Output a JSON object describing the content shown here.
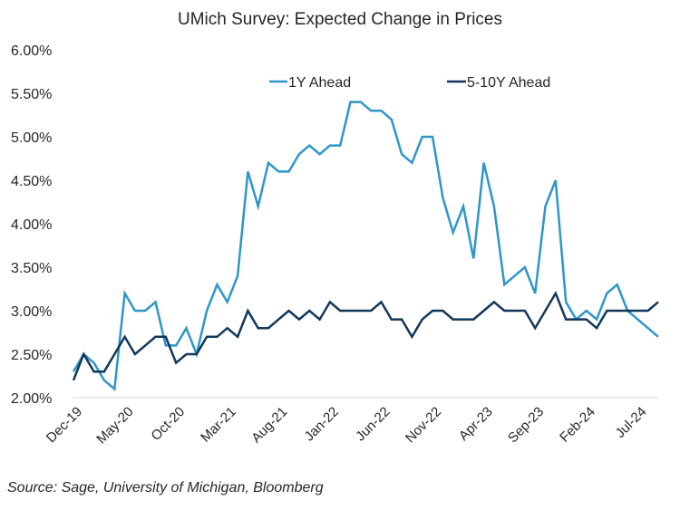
{
  "chart_data": {
    "type": "line",
    "title": "UMich Survey: Expected Change in Prices",
    "xlabel": "",
    "ylabel": "",
    "ylim": [
      0.02,
      0.06
    ],
    "ytick_step": 0.005,
    "y_format": "percent_2dp",
    "grid": false,
    "baseline_only": true,
    "legend_position": "top-center",
    "x": [
      "Dec-19",
      "Jan-20",
      "Feb-20",
      "Mar-20",
      "Apr-20",
      "May-20",
      "Jun-20",
      "Jul-20",
      "Aug-20",
      "Sep-20",
      "Oct-20",
      "Nov-20",
      "Dec-20",
      "Jan-21",
      "Feb-21",
      "Mar-21",
      "Apr-21",
      "May-21",
      "Jun-21",
      "Jul-21",
      "Aug-21",
      "Sep-21",
      "Oct-21",
      "Nov-21",
      "Dec-21",
      "Jan-22",
      "Feb-22",
      "Mar-22",
      "Apr-22",
      "May-22",
      "Jun-22",
      "Jul-22",
      "Aug-22",
      "Sep-22",
      "Oct-22",
      "Nov-22",
      "Dec-22",
      "Jan-23",
      "Feb-23",
      "Mar-23",
      "Apr-23",
      "May-23",
      "Jun-23",
      "Jul-23",
      "Aug-23",
      "Sep-23",
      "Oct-23",
      "Nov-23",
      "Dec-23",
      "Jan-24",
      "Feb-24",
      "Mar-24",
      "Apr-24",
      "May-24",
      "Jun-24",
      "Jul-24",
      "Aug-24",
      "Sep-24"
    ],
    "x_tick_labels": [
      "Dec-19",
      "May-20",
      "Oct-20",
      "Mar-21",
      "Aug-21",
      "Jan-22",
      "Jun-22",
      "Nov-22",
      "Apr-23",
      "Sep-23",
      "Feb-24",
      "Jul-24"
    ],
    "x_tick_every": 5,
    "series": [
      {
        "name": "1Y Ahead",
        "color": "#2E96C8",
        "values": [
          0.023,
          0.025,
          0.024,
          0.022,
          0.021,
          0.032,
          0.03,
          0.03,
          0.031,
          0.026,
          0.026,
          0.028,
          0.025,
          0.03,
          0.033,
          0.031,
          0.034,
          0.046,
          0.042,
          0.047,
          0.046,
          0.046,
          0.048,
          0.049,
          0.048,
          0.049,
          0.049,
          0.054,
          0.054,
          0.053,
          0.053,
          0.052,
          0.048,
          0.047,
          0.05,
          0.05,
          0.043,
          0.039,
          0.042,
          0.036,
          0.047,
          0.042,
          0.033,
          0.034,
          0.035,
          0.032,
          0.042,
          0.045,
          0.031,
          0.029,
          0.03,
          0.029,
          0.032,
          0.033,
          0.03,
          0.029,
          0.028,
          0.027
        ]
      },
      {
        "name": "5-10Y Ahead",
        "color": "#12375A",
        "values": [
          0.022,
          0.025,
          0.023,
          0.023,
          0.025,
          0.027,
          0.025,
          0.026,
          0.027,
          0.027,
          0.024,
          0.025,
          0.025,
          0.027,
          0.027,
          0.028,
          0.027,
          0.03,
          0.028,
          0.028,
          0.029,
          0.03,
          0.029,
          0.03,
          0.029,
          0.031,
          0.03,
          0.03,
          0.03,
          0.03,
          0.031,
          0.029,
          0.029,
          0.027,
          0.029,
          0.03,
          0.03,
          0.029,
          0.029,
          0.029,
          0.03,
          0.031,
          0.03,
          0.03,
          0.03,
          0.028,
          0.03,
          0.032,
          0.029,
          0.029,
          0.029,
          0.028,
          0.03,
          0.03,
          0.03,
          0.03,
          0.03,
          0.031
        ]
      }
    ]
  },
  "footer": {
    "source": "Source: Sage, University of Michigan, Bloomberg"
  },
  "colors": {
    "text": "#262626",
    "baseline": "#D9D9D9"
  }
}
